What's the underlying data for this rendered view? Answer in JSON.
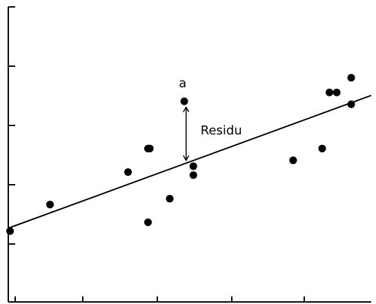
{
  "chart_data": {
    "type": "scatter",
    "xlim": [
      0,
      100
    ],
    "ylim": [
      0,
      100
    ],
    "grid": false,
    "points": [
      {
        "x": 0.5,
        "y": 24
      },
      {
        "x": 11.5,
        "y": 33
      },
      {
        "x": 33,
        "y": 44
      },
      {
        "x": 38.5,
        "y": 52
      },
      {
        "x": 39,
        "y": 52
      },
      {
        "x": 38.5,
        "y": 27
      },
      {
        "x": 44.5,
        "y": 35
      },
      {
        "x": 48.5,
        "y": 68
      },
      {
        "x": 51,
        "y": 46
      },
      {
        "x": 51,
        "y": 43
      },
      {
        "x": 78.5,
        "y": 48
      },
      {
        "x": 86.5,
        "y": 52
      },
      {
        "x": 88.5,
        "y": 71
      },
      {
        "x": 90.5,
        "y": 71
      },
      {
        "x": 94.5,
        "y": 76
      },
      {
        "x": 94.5,
        "y": 67
      }
    ],
    "regression_line": {
      "x": [
        0,
        100
      ],
      "y": [
        25,
        70
      ]
    },
    "annotations": [
      {
        "text": "a",
        "x": 47,
        "y": 74
      },
      {
        "text": "Residu",
        "x": 53,
        "y": 58
      }
    ],
    "residual_marker": {
      "x": 49,
      "y_from": 66,
      "y_to": 48
    }
  }
}
